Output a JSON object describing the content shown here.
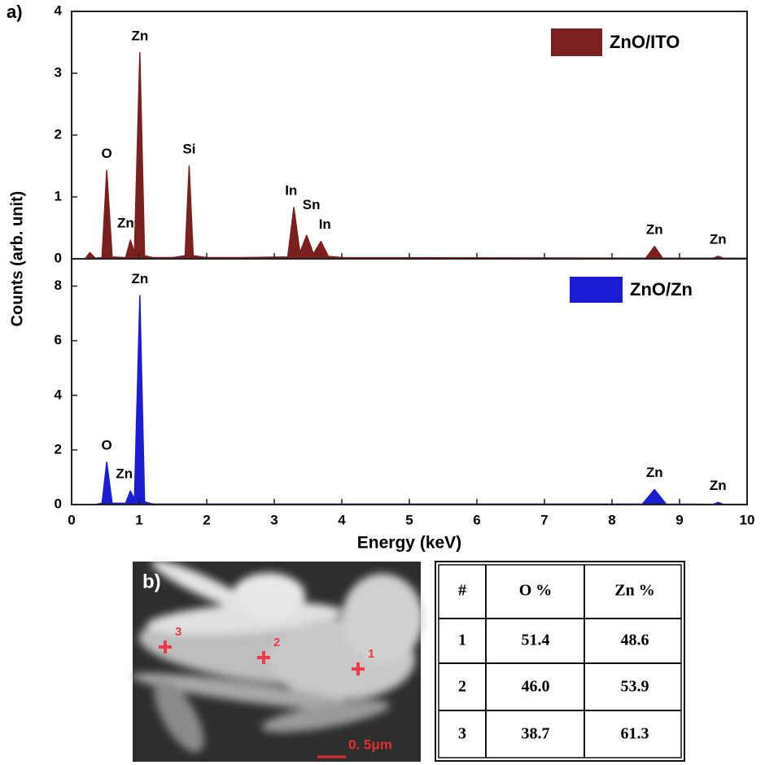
{
  "figure": {
    "panel_a_label": "a)",
    "panel_b_label": "b)",
    "y_label": "Counts (arb. unit)",
    "x_label": "Energy (keV)"
  },
  "chart_data": [
    {
      "type": "area",
      "legend": "upper right",
      "xlim": [
        0,
        10
      ],
      "xticks": [
        0,
        1,
        2,
        3,
        4,
        5,
        6,
        7,
        8,
        9,
        10
      ],
      "ylim": [
        0,
        4
      ],
      "yticks": [
        0,
        1,
        2,
        3,
        4
      ],
      "x": [
        0.2,
        0.27,
        0.35,
        0.45,
        0.52,
        0.6,
        0.8,
        0.87,
        0.93,
        1.01,
        1.08,
        1.2,
        1.5,
        1.68,
        1.74,
        1.8,
        2.0,
        2.5,
        3.2,
        3.29,
        3.38,
        3.48,
        3.58,
        3.69,
        3.8,
        4.0,
        8.5,
        8.63,
        8.75,
        9.5,
        9.57,
        9.65,
        10
      ],
      "series": [
        {
          "name": "ZnO/ITO",
          "color": "#7b1f1f",
          "values": [
            0,
            0.1,
            0.01,
            0.02,
            1.43,
            0.03,
            0.02,
            0.3,
            0.1,
            3.33,
            0.05,
            0.02,
            0.02,
            0.05,
            1.5,
            0.05,
            0.02,
            0.02,
            0.03,
            0.83,
            0.1,
            0.38,
            0.08,
            0.28,
            0.04,
            0.02,
            0.01,
            0.2,
            0.01,
            0.01,
            0.04,
            0.01,
            0.01
          ]
        }
      ],
      "annotations": [
        {
          "text": "Zn",
          "x": 1.01,
          "y": 3.33
        },
        {
          "text": "O",
          "x": 0.52,
          "y": 1.43
        },
        {
          "text": "Zn",
          "x": 0.8,
          "y": 0.3
        },
        {
          "text": "Si",
          "x": 1.74,
          "y": 1.5
        },
        {
          "text": "In",
          "x": 3.25,
          "y": 0.83
        },
        {
          "text": "Sn",
          "x": 3.55,
          "y": 0.6
        },
        {
          "text": "In",
          "x": 3.75,
          "y": 0.28
        },
        {
          "text": "Zn",
          "x": 8.63,
          "y": 0.2
        },
        {
          "text": "Zn",
          "x": 9.57,
          "y": 0.04
        }
      ]
    },
    {
      "type": "area",
      "legend": "upper right",
      "xlim": [
        0,
        10
      ],
      "xticks": [
        0,
        1,
        2,
        3,
        4,
        5,
        6,
        7,
        8,
        9,
        10
      ],
      "ylim": [
        0,
        9
      ],
      "yticks": [
        0,
        2,
        4,
        6,
        8
      ],
      "x": [
        0.35,
        0.45,
        0.52,
        0.6,
        0.8,
        0.87,
        0.93,
        1.01,
        1.08,
        1.2,
        8.45,
        8.63,
        8.8,
        9.5,
        9.57,
        9.65,
        10
      ],
      "series": [
        {
          "name": "ZnO/Zn",
          "color": "#1c1cd4",
          "values": [
            0,
            0.05,
            1.55,
            0.05,
            0.05,
            0.5,
            0.2,
            7.65,
            0.1,
            0.02,
            0.02,
            0.55,
            0.02,
            0.01,
            0.08,
            0.01,
            0.01
          ]
        }
      ],
      "annotations": [
        {
          "text": "Zn",
          "x": 1.01,
          "y": 7.65
        },
        {
          "text": "O",
          "x": 0.52,
          "y": 1.55
        },
        {
          "text": "Zn",
          "x": 0.78,
          "y": 0.5
        },
        {
          "text": "Zn",
          "x": 8.63,
          "y": 0.55
        },
        {
          "text": "Zn",
          "x": 9.57,
          "y": 0.08
        }
      ]
    }
  ],
  "image": {
    "points": [
      "1",
      "2",
      "3"
    ],
    "scale_bar": "0. 5μm"
  },
  "table": {
    "header": [
      "#",
      "O %",
      "Zn %"
    ],
    "rows": [
      [
        "1",
        "51.4",
        "48.6"
      ],
      [
        "2",
        "46.0",
        "53.9"
      ],
      [
        "3",
        "38.7",
        "61.3"
      ]
    ]
  }
}
